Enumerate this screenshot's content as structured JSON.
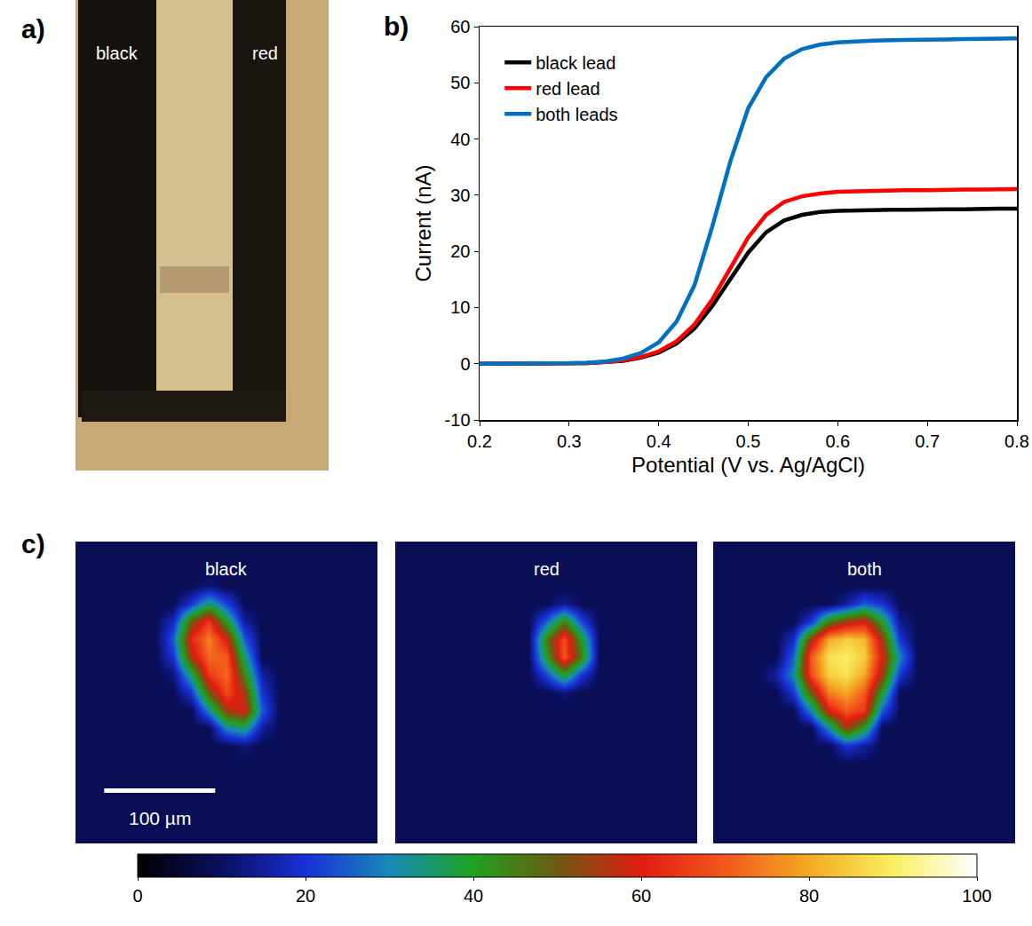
{
  "panel_labels": [
    "a)",
    "b)",
    "c)"
  ],
  "micrograph": {
    "type": "image",
    "labels": [
      "black",
      "red"
    ]
  },
  "colorbar": {
    "range": [
      0,
      100
    ],
    "ticks": [
      0,
      20,
      40,
      60,
      80,
      100
    ]
  },
  "chart_data": [
    {
      "type": "line",
      "xlabel": "Potential (V vs. Ag/AgCl)",
      "ylabel": "Current (nA)",
      "x": [
        0.2,
        0.22,
        0.24,
        0.26,
        0.28,
        0.3,
        0.32,
        0.34,
        0.36,
        0.38,
        0.4,
        0.42,
        0.44,
        0.46,
        0.48,
        0.5,
        0.52,
        0.54,
        0.56,
        0.58,
        0.6,
        0.62,
        0.64,
        0.66,
        0.68,
        0.7,
        0.72,
        0.74,
        0.76,
        0.78,
        0.8
      ],
      "series": [
        {
          "name": "black lead",
          "color": "#000000",
          "values": [
            0,
            0,
            0,
            0,
            0,
            0.1,
            0.1,
            0.3,
            0.5,
            1.1,
            2,
            3.6,
            6.3,
            10.3,
            15,
            19.8,
            23.4,
            25.5,
            26.5,
            27,
            27.2,
            27.3,
            27.3,
            27.4,
            27.4,
            27.5,
            27.5,
            27.5,
            27.6,
            27.6,
            27.6
          ]
        },
        {
          "name": "red lead",
          "color": "#ff0000",
          "values": [
            0,
            0,
            0,
            0,
            0,
            0.1,
            0.1,
            0.3,
            0.6,
            1.2,
            2.2,
            4,
            7,
            11.5,
            17,
            22.5,
            26.5,
            28.8,
            29.8,
            30.3,
            30.6,
            30.7,
            30.8,
            30.8,
            30.9,
            30.9,
            31,
            31,
            31,
            31.1,
            31.1
          ]
        },
        {
          "name": "both leads",
          "color": "#0070c0",
          "values": [
            0,
            0,
            0,
            0,
            0,
            0.1,
            0.2,
            0.4,
            0.9,
            1.9,
            3.8,
            7.5,
            14,
            24.5,
            36,
            45.5,
            51,
            54.3,
            56,
            56.8,
            57.2,
            57.4,
            57.5,
            57.6,
            57.6,
            57.7,
            57.7,
            57.8,
            57.8,
            57.9,
            57.9
          ]
        }
      ],
      "xlim": [
        0.2,
        0.8
      ],
      "xticks": [
        0.2,
        0.3,
        0.4,
        0.5,
        0.6,
        0.7,
        0.8
      ],
      "ylim": [
        -10,
        60
      ],
      "yticks": [
        -10,
        0,
        10,
        20,
        30,
        40,
        50,
        60
      ],
      "grid": false,
      "legend": "upper left"
    },
    {
      "type": "heatmap",
      "title": "black",
      "tick_labels": false,
      "xlim": [
        0,
        272
      ],
      "ylim": [
        272,
        0
      ],
      "x": [
        8,
        24,
        40,
        56,
        72,
        88,
        104,
        120,
        136,
        152,
        168,
        184,
        200,
        216,
        232,
        248,
        264
      ],
      "y": [
        8,
        24,
        40,
        56,
        72,
        88,
        104,
        120,
        136,
        152,
        168,
        184,
        200,
        216,
        232,
        248,
        264
      ],
      "scale_bar": {
        "label": "100 µm",
        "length": 100
      },
      "z": [
        [
          9,
          9,
          9,
          9,
          9,
          9,
          9,
          9,
          9,
          9,
          9,
          9,
          9,
          9,
          9,
          9,
          9
        ],
        [
          9,
          9,
          9,
          9,
          9,
          9,
          9,
          9,
          9,
          9,
          9,
          9,
          9,
          9,
          9,
          9,
          9
        ],
        [
          9,
          9,
          9,
          9,
          9,
          9,
          9,
          12,
          9,
          9,
          9,
          9,
          9,
          9,
          9,
          9,
          9
        ],
        [
          9,
          9,
          9,
          9,
          9,
          9,
          20,
          35,
          22,
          9,
          9,
          9,
          9,
          9,
          9,
          9,
          9
        ],
        [
          9,
          9,
          9,
          9,
          9,
          18,
          50,
          65,
          40,
          15,
          9,
          9,
          9,
          9,
          9,
          9,
          9
        ],
        [
          9,
          9,
          9,
          9,
          9,
          25,
          62,
          75,
          60,
          25,
          9,
          9,
          9,
          9,
          9,
          9,
          9
        ],
        [
          9,
          9,
          9,
          9,
          9,
          20,
          55,
          72,
          70,
          35,
          9,
          9,
          9,
          9,
          9,
          9,
          9
        ],
        [
          9,
          9,
          9,
          9,
          9,
          12,
          35,
          65,
          72,
          45,
          15,
          9,
          9,
          9,
          9,
          9,
          9
        ],
        [
          9,
          9,
          9,
          9,
          9,
          9,
          20,
          50,
          68,
          55,
          20,
          9,
          9,
          9,
          9,
          9,
          9
        ],
        [
          9,
          9,
          9,
          9,
          9,
          9,
          9,
          30,
          55,
          60,
          25,
          9,
          9,
          9,
          9,
          9,
          9
        ],
        [
          9,
          9,
          9,
          9,
          9,
          9,
          9,
          9,
          30,
          35,
          15,
          9,
          9,
          9,
          9,
          9,
          9
        ],
        [
          9,
          9,
          9,
          9,
          9,
          9,
          9,
          9,
          9,
          12,
          9,
          9,
          9,
          9,
          9,
          9,
          9
        ],
        [
          9,
          9,
          9,
          9,
          9,
          9,
          9,
          9,
          9,
          9,
          9,
          9,
          9,
          9,
          9,
          9,
          9
        ],
        [
          9,
          9,
          9,
          9,
          9,
          9,
          9,
          9,
          9,
          9,
          9,
          9,
          9,
          9,
          9,
          9,
          9
        ],
        [
          9,
          9,
          9,
          9,
          9,
          9,
          9,
          9,
          9,
          9,
          9,
          9,
          9,
          9,
          9,
          9,
          9
        ],
        [
          9,
          9,
          9,
          9,
          9,
          9,
          9,
          9,
          9,
          9,
          9,
          9,
          9,
          9,
          9,
          9,
          9
        ],
        [
          9,
          9,
          9,
          9,
          9,
          9,
          9,
          9,
          9,
          9,
          9,
          9,
          9,
          9,
          9,
          9,
          9
        ]
      ]
    },
    {
      "type": "heatmap",
      "title": "red",
      "tick_labels": false,
      "xlim": [
        0,
        272
      ],
      "ylim": [
        272,
        0
      ],
      "x": [
        8,
        24,
        40,
        56,
        72,
        88,
        104,
        120,
        136,
        152,
        168,
        184,
        200,
        216,
        232,
        248,
        264
      ],
      "y": [
        8,
        24,
        40,
        56,
        72,
        88,
        104,
        120,
        136,
        152,
        168,
        184,
        200,
        216,
        232,
        248,
        264
      ],
      "z": [
        [
          9,
          9,
          9,
          9,
          9,
          9,
          9,
          9,
          9,
          9,
          9,
          9,
          9,
          9,
          9,
          9,
          9
        ],
        [
          9,
          9,
          9,
          9,
          9,
          9,
          9,
          9,
          9,
          9,
          9,
          9,
          9,
          9,
          9,
          9,
          9
        ],
        [
          9,
          9,
          9,
          9,
          9,
          9,
          9,
          9,
          9,
          9,
          9,
          9,
          9,
          9,
          9,
          9,
          9
        ],
        [
          9,
          9,
          9,
          9,
          9,
          9,
          9,
          9,
          9,
          14,
          9,
          9,
          9,
          9,
          9,
          9,
          9
        ],
        [
          9,
          9,
          9,
          9,
          9,
          9,
          9,
          9,
          25,
          45,
          22,
          9,
          9,
          9,
          9,
          9,
          9
        ],
        [
          9,
          9,
          9,
          9,
          9,
          9,
          9,
          9,
          45,
          68,
          40,
          9,
          9,
          9,
          9,
          9,
          9
        ],
        [
          9,
          9,
          9,
          9,
          9,
          9,
          9,
          9,
          40,
          70,
          45,
          9,
          9,
          9,
          9,
          9,
          9
        ],
        [
          9,
          9,
          9,
          9,
          9,
          9,
          9,
          9,
          22,
          40,
          20,
          9,
          9,
          9,
          9,
          9,
          9
        ],
        [
          9,
          9,
          9,
          9,
          9,
          9,
          9,
          9,
          9,
          12,
          9,
          9,
          9,
          9,
          9,
          9,
          9
        ],
        [
          9,
          9,
          9,
          9,
          9,
          9,
          9,
          9,
          9,
          9,
          9,
          9,
          9,
          9,
          9,
          9,
          9
        ],
        [
          9,
          9,
          9,
          9,
          9,
          9,
          9,
          9,
          9,
          9,
          9,
          9,
          9,
          9,
          9,
          9,
          9
        ],
        [
          9,
          9,
          9,
          9,
          9,
          9,
          9,
          9,
          9,
          9,
          9,
          9,
          9,
          9,
          9,
          9,
          9
        ],
        [
          9,
          9,
          9,
          9,
          9,
          9,
          9,
          9,
          9,
          9,
          9,
          9,
          9,
          9,
          9,
          9,
          9
        ],
        [
          9,
          9,
          9,
          9,
          9,
          9,
          9,
          9,
          9,
          9,
          9,
          9,
          9,
          9,
          9,
          9,
          9
        ],
        [
          9,
          9,
          9,
          9,
          9,
          9,
          9,
          9,
          9,
          9,
          9,
          9,
          9,
          9,
          9,
          9,
          9
        ],
        [
          9,
          9,
          9,
          9,
          9,
          9,
          9,
          9,
          9,
          9,
          9,
          9,
          9,
          9,
          9,
          9,
          9
        ],
        [
          9,
          9,
          9,
          9,
          9,
          9,
          9,
          9,
          9,
          9,
          9,
          9,
          9,
          9,
          9,
          9,
          9
        ]
      ]
    },
    {
      "type": "heatmap",
      "title": "both",
      "tick_labels": false,
      "xlim": [
        0,
        272
      ],
      "ylim": [
        272,
        0
      ],
      "x": [
        8,
        24,
        40,
        56,
        72,
        88,
        104,
        120,
        136,
        152,
        168,
        184,
        200,
        216,
        232,
        248,
        264
      ],
      "y": [
        8,
        24,
        40,
        56,
        72,
        88,
        104,
        120,
        136,
        152,
        168,
        184,
        200,
        216,
        232,
        248,
        264
      ],
      "z": [
        [
          9,
          9,
          9,
          9,
          9,
          9,
          9,
          9,
          9,
          9,
          9,
          9,
          9,
          9,
          9,
          9,
          9
        ],
        [
          9,
          9,
          9,
          9,
          9,
          9,
          9,
          9,
          9,
          9,
          9,
          9,
          9,
          9,
          9,
          9,
          9
        ],
        [
          9,
          9,
          9,
          9,
          9,
          9,
          9,
          9,
          9,
          9,
          9,
          9,
          9,
          9,
          9,
          9,
          9
        ],
        [
          9,
          9,
          9,
          9,
          9,
          9,
          9,
          15,
          25,
          20,
          9,
          9,
          9,
          9,
          9,
          9,
          9
        ],
        [
          9,
          9,
          9,
          9,
          9,
          20,
          45,
          55,
          60,
          40,
          14,
          9,
          9,
          9,
          9,
          9,
          9
        ],
        [
          9,
          9,
          9,
          9,
          18,
          55,
          80,
          85,
          82,
          55,
          20,
          9,
          9,
          9,
          9,
          9,
          9
        ],
        [
          9,
          9,
          9,
          9,
          25,
          70,
          88,
          90,
          85,
          60,
          30,
          9,
          9,
          9,
          9,
          9,
          9
        ],
        [
          9,
          9,
          9,
          15,
          30,
          68,
          85,
          88,
          80,
          55,
          20,
          9,
          9,
          9,
          9,
          9,
          9
        ],
        [
          9,
          9,
          9,
          9,
          20,
          50,
          75,
          80,
          70,
          40,
          9,
          9,
          9,
          9,
          9,
          9,
          9
        ],
        [
          9,
          9,
          9,
          9,
          9,
          30,
          60,
          70,
          65,
          25,
          9,
          9,
          9,
          9,
          9,
          9,
          9
        ],
        [
          9,
          9,
          9,
          9,
          9,
          9,
          30,
          55,
          40,
          9,
          9,
          9,
          9,
          9,
          9,
          9,
          9
        ],
        [
          9,
          9,
          9,
          9,
          9,
          9,
          9,
          20,
          15,
          9,
          9,
          9,
          9,
          9,
          9,
          9,
          9
        ],
        [
          9,
          9,
          9,
          9,
          9,
          9,
          9,
          9,
          9,
          9,
          9,
          9,
          9,
          9,
          9,
          9,
          9
        ],
        [
          9,
          9,
          9,
          9,
          9,
          9,
          9,
          9,
          9,
          9,
          9,
          9,
          9,
          9,
          9,
          9,
          9
        ],
        [
          9,
          9,
          9,
          9,
          9,
          9,
          9,
          9,
          9,
          9,
          9,
          9,
          9,
          9,
          9,
          9,
          9
        ],
        [
          9,
          9,
          9,
          9,
          9,
          9,
          9,
          9,
          9,
          9,
          9,
          9,
          9,
          9,
          9,
          9,
          9
        ],
        [
          9,
          9,
          9,
          9,
          9,
          9,
          9,
          9,
          9,
          9,
          9,
          9,
          9,
          9,
          9,
          9,
          9
        ]
      ]
    }
  ]
}
